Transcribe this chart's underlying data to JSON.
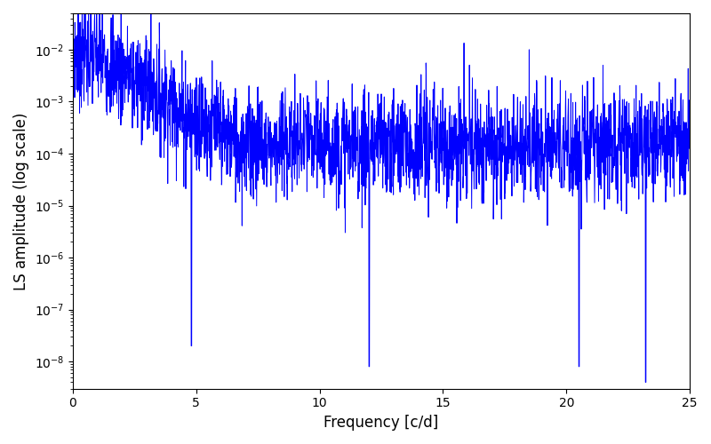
{
  "title": "",
  "xlabel": "Frequency [c/d]",
  "ylabel": "LS amplitude (log scale)",
  "line_color": "#0000ff",
  "line_width": 0.7,
  "xlim": [
    0,
    25
  ],
  "ylim_log": [
    3e-09,
    0.05
  ],
  "yscale": "log",
  "figsize": [
    8.0,
    5.0
  ],
  "dpi": 100,
  "n_points": 2500,
  "freq_max": 25.0,
  "seed": 7,
  "background_color": "#ffffff"
}
